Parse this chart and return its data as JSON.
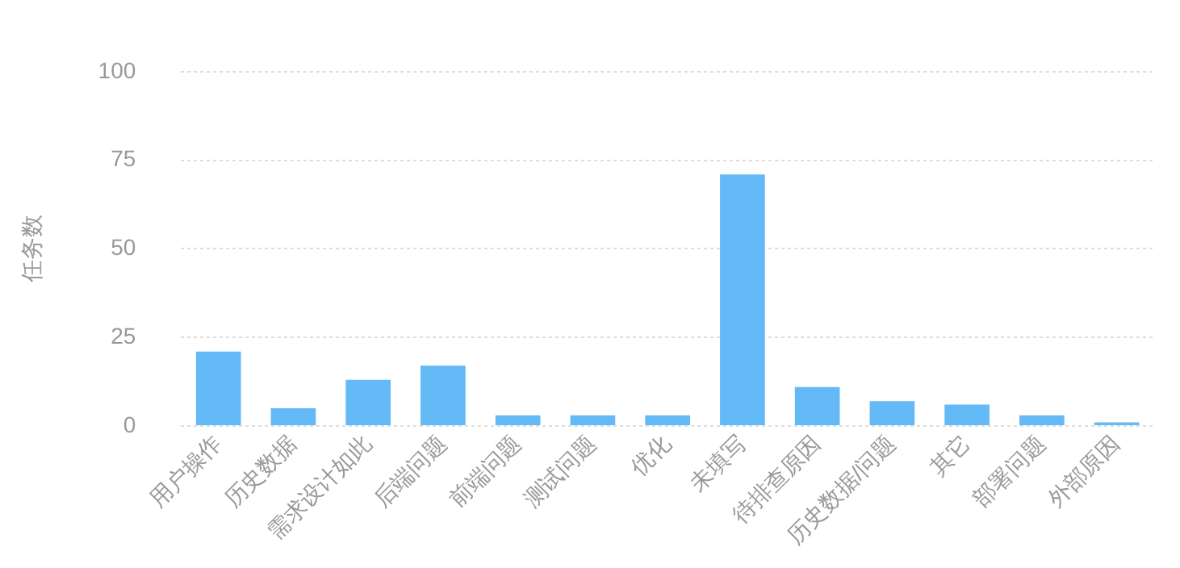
{
  "chart_data": {
    "type": "bar",
    "ylabel": "任务数",
    "categories": [
      "用户操作",
      "历史数据",
      "需求设计如此",
      "后端问题",
      "前端问题",
      "测试问题",
      "优化",
      "未填写",
      "待排查原因",
      "历史数据/问题",
      "其它",
      "部署问题",
      "外部原因"
    ],
    "values": [
      21,
      5,
      13,
      17,
      3,
      3,
      3,
      71,
      11,
      7,
      6,
      3,
      1
    ],
    "color": "#64b9f7",
    "ylim": [
      0,
      100
    ],
    "yticks": [
      0,
      25,
      50,
      75,
      100
    ],
    "grid": "y",
    "legend": false
  }
}
